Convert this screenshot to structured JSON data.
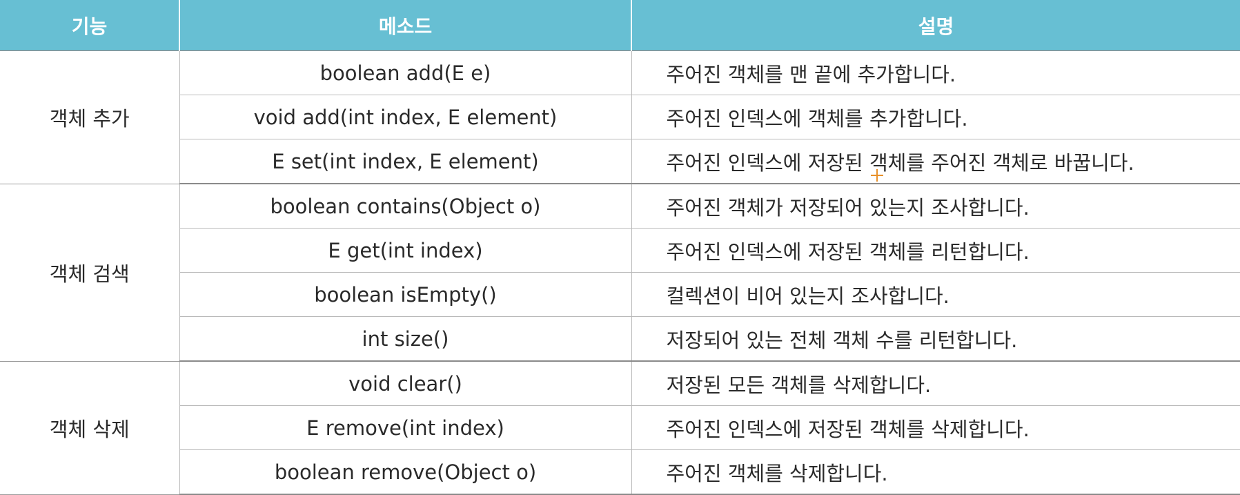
{
  "header": {
    "col_function": "기능",
    "col_method": "메소드",
    "col_description": "설명"
  },
  "groups": [
    {
      "function": "객체 추가",
      "rows": [
        {
          "method": "boolean add(E e)",
          "description": "주어진 객체를 맨 끝에 추가합니다."
        },
        {
          "method": "void add(int index, E element)",
          "description": "주어진 인덱스에 객체를 추가합니다."
        },
        {
          "method": "E set(int index, E element)",
          "description": "주어진 인덱스에 저장된 객체를 주어진 객체로 바꿉니다."
        }
      ]
    },
    {
      "function": "객체 검색",
      "rows": [
        {
          "method": "boolean contains(Object o)",
          "description": "주어진 객체가 저장되어 있는지 조사합니다."
        },
        {
          "method": "E get(int index)",
          "description": "주어진 인덱스에 저장된 객체를 리턴합니다."
        },
        {
          "method": "boolean isEmpty()",
          "description": "컬렉션이 비어 있는지 조사합니다."
        },
        {
          "method": "int size()",
          "description": "저장되어 있는 전체 객체 수를 리턴합니다."
        }
      ]
    },
    {
      "function": "객체 삭제",
      "rows": [
        {
          "method": "void clear()",
          "description": "저장된 모든 객체를 삭제합니다."
        },
        {
          "method": "E remove(int index)",
          "description": "주어진 인덱스에 저장된 객체를 삭제합니다."
        },
        {
          "method": "boolean remove(Object o)",
          "description": "주어진 객체를 삭제합니다."
        }
      ]
    }
  ],
  "colors": {
    "header_bg": "#67bfd3",
    "header_text": "#ffffff",
    "cursor": "#e8912a"
  }
}
